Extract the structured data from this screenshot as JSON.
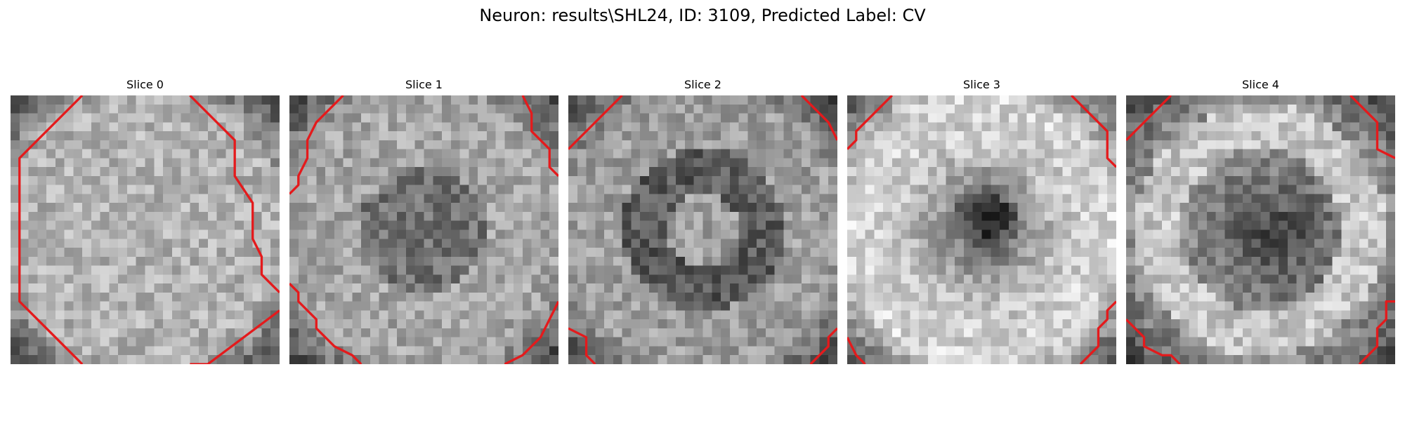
{
  "figure": {
    "title": "Neuron: results\\SHL24, ID: 3109, Predicted Label: CV"
  },
  "slices": [
    {
      "title": "Slice 0",
      "brightness": "bright-disc",
      "contour": [
        [
          [
            8,
            0
          ],
          [
            1,
            7
          ],
          [
            1,
            23
          ],
          [
            4,
            26
          ],
          [
            8,
            30
          ]
        ],
        [
          [
            20,
            0
          ],
          [
            25,
            5
          ],
          [
            25,
            9
          ],
          [
            27,
            12
          ],
          [
            27,
            16
          ],
          [
            28,
            18
          ],
          [
            28,
            20
          ],
          [
            30,
            22
          ]
        ],
        [
          [
            20,
            30
          ],
          [
            22,
            30
          ],
          [
            30,
            24
          ]
        ]
      ]
    },
    {
      "title": "Slice 1",
      "brightness": "dim-center",
      "contour": [
        [
          [
            6,
            0
          ],
          [
            3,
            3
          ],
          [
            2,
            5
          ],
          [
            2,
            7
          ],
          [
            1,
            9
          ],
          [
            1,
            10
          ],
          [
            0,
            11
          ]
        ],
        [
          [
            26,
            0
          ],
          [
            27,
            2
          ],
          [
            27,
            4
          ],
          [
            29,
            6
          ],
          [
            29,
            8
          ],
          [
            30,
            9
          ]
        ],
        [
          [
            0,
            21
          ],
          [
            1,
            22
          ],
          [
            1,
            23
          ],
          [
            3,
            25
          ],
          [
            3,
            26
          ],
          [
            4,
            27
          ],
          [
            5,
            28
          ],
          [
            7,
            29
          ],
          [
            8,
            30
          ]
        ],
        [
          [
            24,
            30
          ],
          [
            26,
            29
          ],
          [
            28,
            27
          ],
          [
            29,
            25
          ],
          [
            30,
            23
          ]
        ]
      ]
    },
    {
      "title": "Slice 2",
      "brightness": "dark-ring",
      "contour": [
        [
          [
            6,
            0
          ],
          [
            0,
            6
          ]
        ],
        [
          [
            26,
            0
          ],
          [
            28,
            2
          ],
          [
            29,
            3
          ],
          [
            30,
            5
          ]
        ],
        [
          [
            0,
            26
          ],
          [
            2,
            27
          ],
          [
            2,
            29
          ],
          [
            3,
            30
          ]
        ],
        [
          [
            27,
            30
          ],
          [
            29,
            28
          ],
          [
            29,
            27
          ],
          [
            30,
            26
          ]
        ]
      ]
    },
    {
      "title": "Slice 3",
      "brightness": "dark-center",
      "contour": [
        [
          [
            5,
            0
          ],
          [
            1,
            4
          ],
          [
            1,
            5
          ],
          [
            0,
            6
          ]
        ],
        [
          [
            25,
            0
          ],
          [
            27,
            2
          ],
          [
            29,
            4
          ],
          [
            29,
            7
          ],
          [
            30,
            8
          ]
        ],
        [
          [
            0,
            27
          ],
          [
            1,
            29
          ],
          [
            2,
            30
          ]
        ],
        [
          [
            26,
            30
          ],
          [
            28,
            28
          ],
          [
            28,
            26
          ],
          [
            29,
            25
          ],
          [
            29,
            24
          ],
          [
            30,
            23
          ]
        ]
      ]
    },
    {
      "title": "Slice 4",
      "brightness": "ring-dark-core",
      "contour": [
        [
          [
            5,
            0
          ],
          [
            0,
            5
          ]
        ],
        [
          [
            25,
            0
          ],
          [
            28,
            3
          ],
          [
            28,
            6
          ],
          [
            30,
            7
          ]
        ],
        [
          [
            0,
            25
          ],
          [
            2,
            27
          ],
          [
            2,
            28
          ],
          [
            4,
            29
          ],
          [
            5,
            29
          ],
          [
            6,
            30
          ]
        ],
        [
          [
            26,
            30
          ],
          [
            28,
            28
          ],
          [
            28,
            26
          ],
          [
            29,
            25
          ],
          [
            29,
            23
          ],
          [
            30,
            23
          ]
        ]
      ]
    }
  ],
  "colors": {
    "contour": "#e41a1c"
  }
}
